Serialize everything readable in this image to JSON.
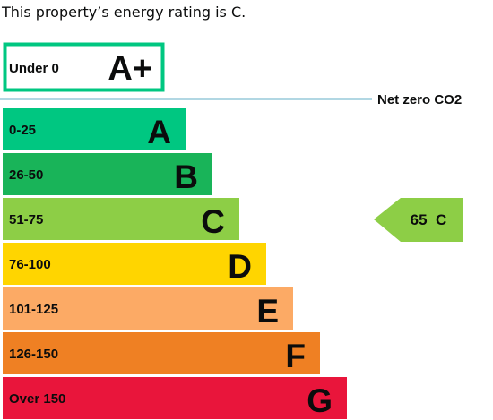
{
  "headline": "This property’s energy rating is C.",
  "chart_data": {
    "type": "bar",
    "title": "",
    "plus_band": {
      "range": "Under 0",
      "letter": "A+",
      "color": "#00c781"
    },
    "net_zero_label": "Net zero CO2",
    "net_zero_color": "#b1d7e3",
    "categories": [
      "A",
      "B",
      "C",
      "D",
      "E",
      "F",
      "G"
    ],
    "ranges": [
      "0-25",
      "26-50",
      "51-75",
      "76-100",
      "101-125",
      "126-150",
      "Over 150"
    ],
    "colors": [
      "#00c781",
      "#19b459",
      "#8dce46",
      "#ffd500",
      "#fcaa65",
      "#ef8023",
      "#e9153b"
    ],
    "values": [
      1,
      2,
      3,
      4,
      5,
      6,
      7
    ],
    "current": {
      "score": 65,
      "band": "C",
      "label": "65  C",
      "color": "#8dce46"
    }
  }
}
